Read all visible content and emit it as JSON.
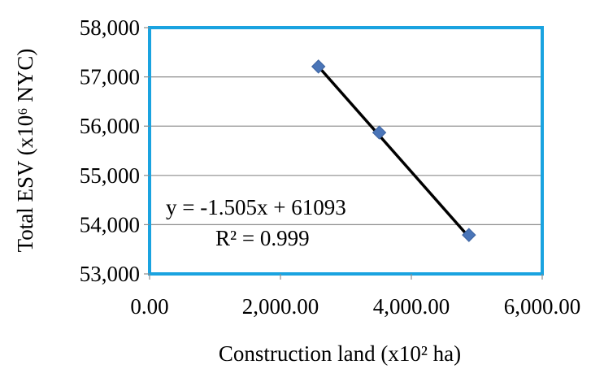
{
  "chart_data": {
    "type": "scatter",
    "xlabel": "Construction land (x10² ha)",
    "ylabel": "Total ESV (x10⁶ NYC)",
    "xlim": [
      0,
      6000
    ],
    "ylim": [
      53000,
      58000
    ],
    "x_ticks": [
      "0.00",
      "2,000.00",
      "4,000.00",
      "6,000.00"
    ],
    "y_ticks": [
      "53,000",
      "54,000",
      "55,000",
      "56,000",
      "57,000",
      "58,000"
    ],
    "x_tick_values": [
      0,
      2000,
      4000,
      6000
    ],
    "y_tick_values": [
      53000,
      54000,
      55000,
      56000,
      57000,
      58000
    ],
    "grid": "horizontal",
    "series": [
      {
        "x": [
          2580,
          3510,
          4880
        ],
        "y": [
          57210,
          55870,
          53790
        ],
        "marker": "diamond",
        "color": "#4a75b8"
      }
    ],
    "trendline": {
      "slope": -1.505,
      "intercept": 61093,
      "x_range": [
        2580,
        4880
      ],
      "color": "#000000"
    },
    "annotations": {
      "equation": "y = -1.505x + 61093",
      "r_squared": "R² = 0.999"
    },
    "border_color": "#1aa3e0",
    "grid_color": "#8c8c8c"
  }
}
